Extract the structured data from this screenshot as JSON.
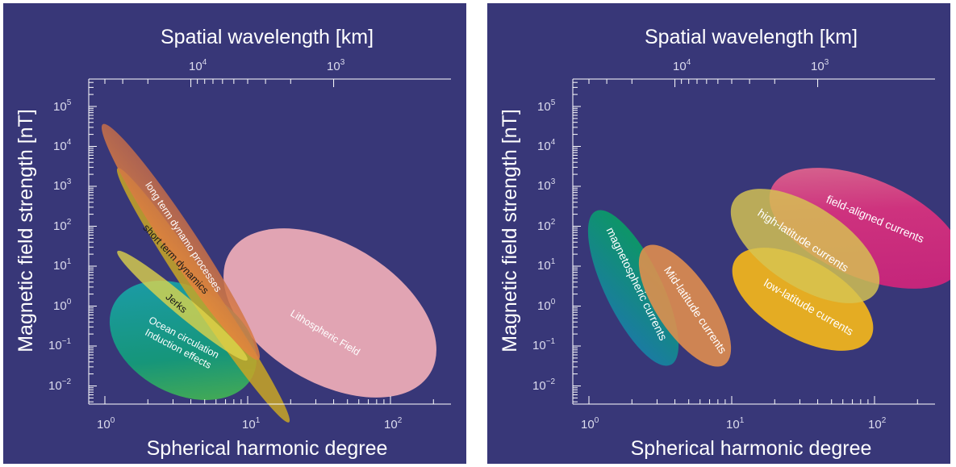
{
  "top_axis": {
    "title": "Spatial wavelength [km]",
    "ticks": [
      {
        "base": "10",
        "exp": "4"
      },
      {
        "base": "10",
        "exp": "3"
      }
    ]
  },
  "bottom_axis": {
    "title": "Spherical harmonic degree",
    "ticks": [
      {
        "base": "10",
        "exp": "0"
      },
      {
        "base": "10",
        "exp": "1"
      },
      {
        "base": "10",
        "exp": "2"
      }
    ]
  },
  "left_axis": {
    "title": "Magnetic field strength [nT]",
    "ticks": [
      {
        "base": "10",
        "exp": "5"
      },
      {
        "base": "10",
        "exp": "4"
      },
      {
        "base": "10",
        "exp": "3"
      },
      {
        "base": "10",
        "exp": "2"
      },
      {
        "base": "10",
        "exp": "1"
      },
      {
        "base": "10",
        "exp": "0"
      },
      {
        "base": "10",
        "exp": "−1"
      },
      {
        "base": "10",
        "exp": "−2"
      }
    ]
  },
  "colors": {
    "background": "#383778",
    "axis": "#ffffff"
  },
  "chart_data": [
    {
      "type": "diagram",
      "xscale": "log",
      "yscale": "log",
      "regions": [
        {
          "label": "Lithospheric Field",
          "color": "#e8a9b5"
        },
        {
          "label": "long term dynamo processes",
          "color": "#d8734f"
        },
        {
          "label": "short term dynamics",
          "color": "#b9a326"
        },
        {
          "label": "Jerks",
          "color": "#d9d14a"
        },
        {
          "label": "Ocean circulation",
          "color": "#12a07a"
        },
        {
          "label": "Induction effects",
          "color": "#12a07a"
        }
      ]
    },
    {
      "type": "diagram",
      "xscale": "log",
      "yscale": "log",
      "regions": [
        {
          "label": "magnetospheric currents",
          "color": "#0e9468"
        },
        {
          "label": "Mid-latitude currents",
          "color": "#e2904d"
        },
        {
          "label": "field-aligned currents",
          "color": "#d4327e"
        },
        {
          "label": "high-latitude currents",
          "color": "#d7c452"
        },
        {
          "label": "low-latitude currents",
          "color": "#edb21f"
        }
      ]
    }
  ]
}
